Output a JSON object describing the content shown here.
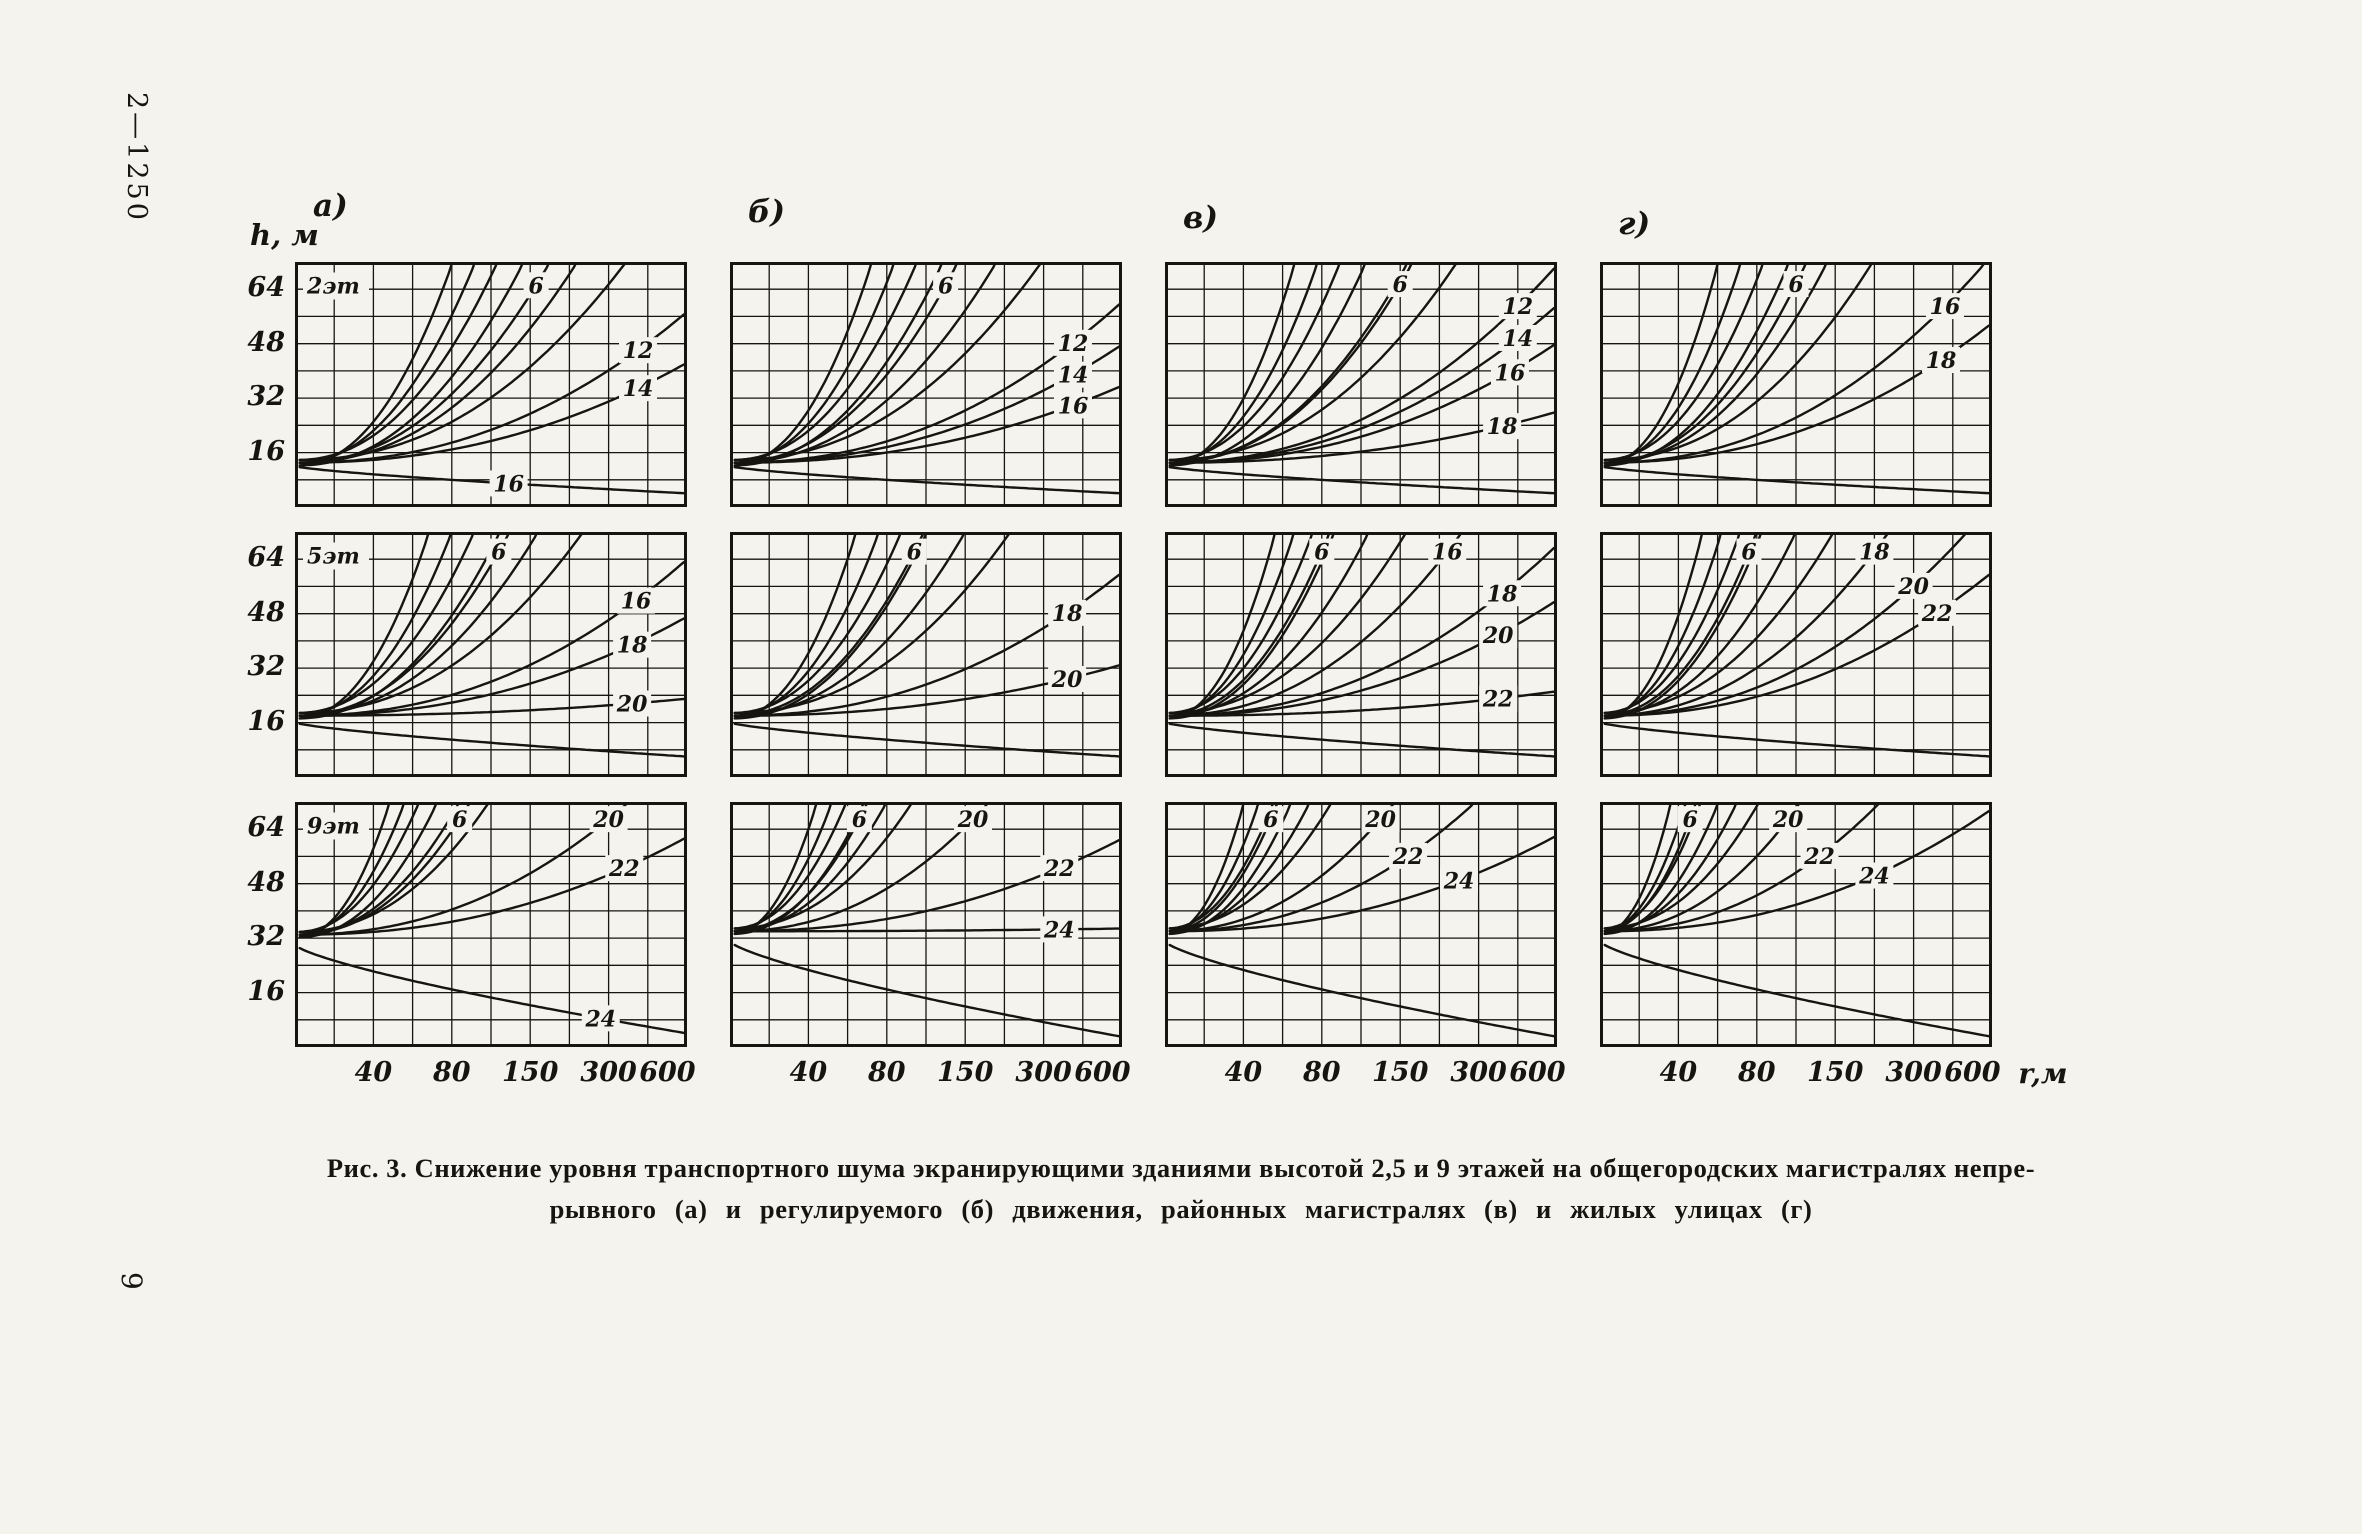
{
  "page": {
    "side_label": "2—1250",
    "page_number": "9",
    "caption_line1": "Рис. 3. Снижение уровня транспортного шума экранирующими зданиями высотой 2,5 и 9 этажей на общегородских  магистралях  непре-",
    "caption_line2": "рывного  (а)  и  регулируемого  (б)  движения,  районных  магистралях  (в)  и  жилых  улицах  (г)"
  },
  "figure": {
    "y_axis_title": "h, м",
    "x_axis_unit": "r,м",
    "column_labels": [
      "а)",
      "б)",
      "в)",
      "г)"
    ],
    "y_ticks": [
      "64",
      "48",
      "32",
      "16"
    ],
    "x_ticks": [
      "40",
      "80",
      "150",
      "300",
      "600"
    ]
  },
  "chart_data": {
    "type": "line",
    "figure_number": "Рис. 3",
    "description": "Семейства кривых снижения уровня транспортного шума экранирующими зданиями (изолинии снижения шума, дБ) в координатах r — h",
    "xlabel": "r,м",
    "ylabel": "h, м",
    "x_ticks": [
      40,
      80,
      150,
      300,
      600
    ],
    "y_ticks": [
      16,
      32,
      48,
      64
    ],
    "y_max": 72,
    "grid": true,
    "rows": [
      "2эт",
      "5эт",
      "9эт"
    ],
    "columns": [
      "а)",
      "б)",
      "в)",
      "г)"
    ],
    "panels": [
      {
        "row": 0,
        "col": 0,
        "floor": "2эт",
        "h0": 13,
        "rise_u_tops": [
          0.4,
          0.46,
          0.52,
          0.58,
          0.72,
          0.85
        ],
        "isolines": [
          {
            "label": "6",
            "lx": 0.615,
            "ly": 0.095
          },
          {
            "label": "12",
            "lx": 0.875,
            "ly": 0.36
          },
          {
            "label": "14",
            "lx": 0.875,
            "ly": 0.515
          }
        ],
        "descender": {
          "h_start": 12,
          "drop": 8,
          "label": "16",
          "label_lx": 0.545
        }
      },
      {
        "row": 0,
        "col": 1,
        "floor": null,
        "h0": 13,
        "rise_u_tops": [
          0.36,
          0.42,
          0.48,
          0.54,
          0.68,
          0.8
        ],
        "isolines": [
          {
            "label": "6",
            "lx": 0.55,
            "ly": 0.095
          },
          {
            "label": "12",
            "lx": 0.875,
            "ly": 0.33
          },
          {
            "label": "14",
            "lx": 0.875,
            "ly": 0.46
          },
          {
            "label": "16",
            "lx": 0.875,
            "ly": 0.585
          }
        ],
        "descender": {
          "h_start": 12,
          "drop": 8
        }
      },
      {
        "row": 0,
        "col": 2,
        "floor": null,
        "h0": 13,
        "rise_u_tops": [
          0.33,
          0.39,
          0.45,
          0.51,
          0.62,
          0.75
        ],
        "isolines": [
          {
            "label": "6",
            "lx": 0.6,
            "ly": 0.09
          },
          {
            "label": "12",
            "lx": 0.9,
            "ly": 0.18
          },
          {
            "label": "14",
            "lx": 0.9,
            "ly": 0.31
          },
          {
            "label": "16",
            "lx": 0.88,
            "ly": 0.45
          },
          {
            "label": "18",
            "lx": 0.86,
            "ly": 0.67
          }
        ],
        "descender": {
          "h_start": 12,
          "drop": 8
        }
      },
      {
        "row": 0,
        "col": 3,
        "floor": null,
        "h0": 13,
        "rise_u_tops": [
          0.3,
          0.36,
          0.42,
          0.48,
          0.58,
          0.7
        ],
        "isolines": [
          {
            "label": "6",
            "lx": 0.5,
            "ly": 0.09
          },
          {
            "label": "16",
            "lx": 0.88,
            "ly": 0.18
          },
          {
            "label": "18",
            "lx": 0.87,
            "ly": 0.4
          }
        ],
        "descender": {
          "h_start": 12,
          "drop": 8
        }
      },
      {
        "row": 1,
        "col": 0,
        "floor": "5эт",
        "h0": 18,
        "rise_u_tops": [
          0.34,
          0.4,
          0.46,
          0.52,
          0.62,
          0.74
        ],
        "isolines": [
          {
            "label": "6",
            "lx": 0.52,
            "ly": 0.08
          },
          {
            "label": "16",
            "lx": 0.87,
            "ly": 0.28
          },
          {
            "label": "18",
            "lx": 0.86,
            "ly": 0.46
          },
          {
            "label": "20",
            "lx": 0.86,
            "ly": 0.7
          }
        ],
        "descender": {
          "h_start": 16,
          "drop": 10
        }
      },
      {
        "row": 1,
        "col": 1,
        "floor": null,
        "h0": 18,
        "rise_u_tops": [
          0.32,
          0.38,
          0.44,
          0.5,
          0.6,
          0.72
        ],
        "isolines": [
          {
            "label": "6",
            "lx": 0.47,
            "ly": 0.08
          },
          {
            "label": "18",
            "lx": 0.86,
            "ly": 0.33
          },
          {
            "label": "20",
            "lx": 0.86,
            "ly": 0.6
          }
        ],
        "descender": {
          "h_start": 16,
          "drop": 10
        }
      },
      {
        "row": 1,
        "col": 2,
        "floor": null,
        "h0": 18,
        "rise_u_tops": [
          0.28,
          0.33,
          0.38,
          0.43,
          0.52,
          0.62
        ],
        "isolines": [
          {
            "label": "6",
            "lx": 0.4,
            "ly": 0.08
          },
          {
            "label": "16",
            "lx": 0.72,
            "ly": 0.08
          },
          {
            "label": "18",
            "lx": 0.86,
            "ly": 0.25
          },
          {
            "label": "20",
            "lx": 0.85,
            "ly": 0.42
          },
          {
            "label": "22",
            "lx": 0.85,
            "ly": 0.68
          }
        ],
        "descender": {
          "h_start": 16,
          "drop": 10
        }
      },
      {
        "row": 1,
        "col": 3,
        "floor": null,
        "h0": 18,
        "rise_u_tops": [
          0.26,
          0.31,
          0.36,
          0.41,
          0.5,
          0.6
        ],
        "isolines": [
          {
            "label": "6",
            "lx": 0.38,
            "ly": 0.08
          },
          {
            "label": "18",
            "lx": 0.7,
            "ly": 0.08
          },
          {
            "label": "20",
            "lx": 0.8,
            "ly": 0.22
          },
          {
            "label": "22",
            "lx": 0.86,
            "ly": 0.33
          }
        ],
        "descender": {
          "h_start": 16,
          "drop": 10
        }
      },
      {
        "row": 2,
        "col": 0,
        "floor": "9эт",
        "h0": 33,
        "rise_u_tops": [
          0.24,
          0.28,
          0.32,
          0.36,
          0.42,
          0.5
        ],
        "isolines": [
          {
            "label": "6",
            "lx": 0.42,
            "ly": 0.07
          },
          {
            "label": "20",
            "lx": 0.8,
            "ly": 0.07
          },
          {
            "label": "22",
            "lx": 0.84,
            "ly": 0.27
          }
        ],
        "descender": {
          "h_start": 30,
          "drop": 26,
          "label": "24",
          "label_lx": 0.78
        }
      },
      {
        "row": 2,
        "col": 1,
        "floor": null,
        "h0": 34,
        "rise_u_tops": [
          0.22,
          0.26,
          0.3,
          0.34,
          0.4,
          0.47
        ],
        "isolines": [
          {
            "label": "6",
            "lx": 0.33,
            "ly": 0.07
          },
          {
            "label": "20",
            "lx": 0.62,
            "ly": 0.07
          },
          {
            "label": "22",
            "lx": 0.84,
            "ly": 0.27
          },
          {
            "label": "24",
            "lx": 0.84,
            "ly": 0.52
          }
        ],
        "descender": {
          "h_start": 31,
          "drop": 28
        }
      },
      {
        "row": 2,
        "col": 2,
        "floor": null,
        "h0": 34,
        "rise_u_tops": [
          0.2,
          0.24,
          0.28,
          0.32,
          0.37,
          0.43
        ],
        "isolines": [
          {
            "label": "6",
            "lx": 0.27,
            "ly": 0.07
          },
          {
            "label": "20",
            "lx": 0.55,
            "ly": 0.07
          },
          {
            "label": "22",
            "lx": 0.62,
            "ly": 0.22
          },
          {
            "label": "24",
            "lx": 0.75,
            "ly": 0.32
          }
        ],
        "descender": {
          "h_start": 31,
          "drop": 28
        }
      },
      {
        "row": 2,
        "col": 3,
        "floor": null,
        "h0": 34,
        "rise_u_tops": [
          0.18,
          0.22,
          0.26,
          0.3,
          0.35,
          0.41
        ],
        "isolines": [
          {
            "label": "6",
            "lx": 0.23,
            "ly": 0.07
          },
          {
            "label": "20",
            "lx": 0.48,
            "ly": 0.07
          },
          {
            "label": "22",
            "lx": 0.56,
            "ly": 0.22
          },
          {
            "label": "24",
            "lx": 0.7,
            "ly": 0.3
          }
        ],
        "descender": {
          "h_start": 31,
          "drop": 28
        }
      }
    ]
  }
}
